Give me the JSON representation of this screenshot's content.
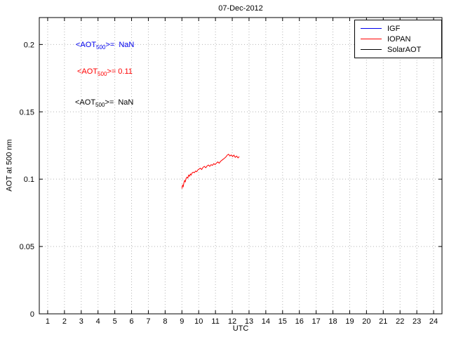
{
  "window": {
    "title": "07-Dec-2012"
  },
  "axis": {
    "xlabel": "UTC",
    "ylabel": "AOT at 500 nm"
  },
  "annotations": [
    {
      "series": "IGF",
      "color": "#0000EE",
      "prefix": "<AOT",
      "sub": "500",
      "suffix": ">=  NaN"
    },
    {
      "series": "IOPAN",
      "color": "#FF0000",
      "prefix": "<AOT",
      "sub": "500",
      "suffix": ">= 0.11"
    },
    {
      "series": "SolarAOT",
      "color": "#000000",
      "prefix": "<AOT",
      "sub": "500",
      "suffix": ">=  NaN"
    }
  ],
  "legend": [
    {
      "label": "IGF",
      "color": "#0000EE"
    },
    {
      "label": "IOPAN",
      "color": "#FF0000"
    },
    {
      "label": "SolarAOT",
      "color": "#000000"
    }
  ],
  "chart_data": {
    "type": "line",
    "title": "07-Dec-2012",
    "xlabel": "UTC",
    "ylabel": "AOT at 500 nm",
    "xlim": [
      0.5,
      24.5
    ],
    "ylim": [
      0,
      0.22
    ],
    "xticks": [
      1,
      2,
      3,
      4,
      5,
      6,
      7,
      8,
      9,
      10,
      11,
      12,
      13,
      14,
      15,
      16,
      17,
      18,
      19,
      20,
      21,
      22,
      23,
      24
    ],
    "xtick_labels": [
      "1",
      "2",
      "3",
      "4",
      "5",
      "6",
      "7",
      "8",
      "9",
      "10",
      "11",
      "12",
      "13",
      "14",
      "15",
      "16",
      "17",
      "18",
      "19",
      "20",
      "21",
      "22",
      "23",
      "24"
    ],
    "yticks": [
      0,
      0.05,
      0.1,
      0.15,
      0.2
    ],
    "ytick_labels": [
      "0",
      "0.05",
      "0.1",
      "0.15",
      "0.2"
    ],
    "grid": true,
    "grid_color": "#b4b4b4",
    "legend_position": "top-right",
    "series": [
      {
        "name": "IGF",
        "color": "#0000EE",
        "mean_aot500": "NaN",
        "x": [],
        "y": []
      },
      {
        "name": "IOPAN",
        "color": "#FF0000",
        "mean_aot500": 0.11,
        "x": [
          9.0,
          9.04,
          9.08,
          9.12,
          9.16,
          9.2,
          9.25,
          9.3,
          9.35,
          9.4,
          9.45,
          9.5,
          9.55,
          9.6,
          9.67,
          9.74,
          9.81,
          9.88,
          9.95,
          10.02,
          10.1,
          10.18,
          10.26,
          10.34,
          10.42,
          10.5,
          10.58,
          10.66,
          10.74,
          10.82,
          10.9,
          10.98,
          11.06,
          11.14,
          11.22,
          11.3,
          11.38,
          11.46,
          11.54,
          11.62,
          11.7,
          11.78,
          11.86,
          11.94,
          12.02,
          12.1,
          12.18,
          12.26,
          12.34,
          12.42
        ],
        "y": [
          0.093,
          0.0955,
          0.0945,
          0.0975,
          0.099,
          0.098,
          0.1005,
          0.1015,
          0.1008,
          0.103,
          0.1022,
          0.1038,
          0.103,
          0.1045,
          0.1052,
          0.1048,
          0.106,
          0.1055,
          0.1068,
          0.1075,
          0.1082,
          0.1072,
          0.1088,
          0.1095,
          0.1085,
          0.1098,
          0.1105,
          0.1095,
          0.1108,
          0.1102,
          0.1115,
          0.1108,
          0.112,
          0.1128,
          0.1118,
          0.1132,
          0.114,
          0.1148,
          0.1155,
          0.1165,
          0.1178,
          0.1185,
          0.1172,
          0.118,
          0.1168,
          0.1178,
          0.1162,
          0.1172,
          0.1158,
          0.1168
        ]
      },
      {
        "name": "SolarAOT",
        "color": "#000000",
        "mean_aot500": "NaN",
        "x": [],
        "y": []
      }
    ]
  }
}
